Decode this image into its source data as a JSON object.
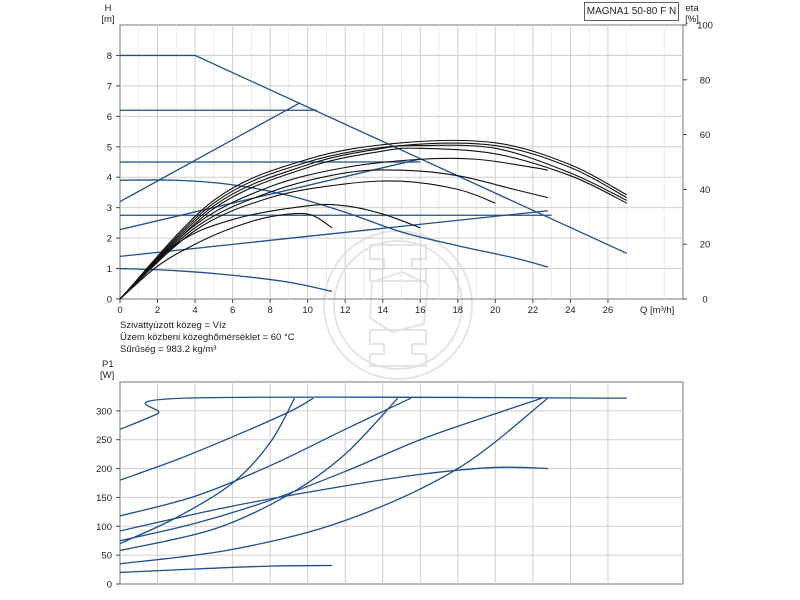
{
  "model": "MAGNA1 50-80 F N",
  "medium": {
    "line1": "Szivattyúzott közeg = Víz",
    "line2": "Üzem közbeni közeghőmérséklet = 60 °C",
    "line3": "Sűrűség = 983.2 kg/m³"
  },
  "chart_data": [
    {
      "type": "line",
      "panel": "head-efficiency",
      "ylabel_top": "H",
      "ylabel_unit": "[m]",
      "y2label_top": "eta",
      "y2label_unit": "[%]",
      "xlabel": "Q [m³/h]",
      "xlim": [
        0,
        30
      ],
      "ylim": [
        0,
        9
      ],
      "y2lim": [
        0,
        100
      ],
      "x_ticks": [
        0,
        2,
        4,
        6,
        8,
        10,
        12,
        14,
        16,
        18,
        20,
        22,
        24,
        26
      ],
      "y_ticks": [
        0,
        1,
        2,
        3,
        4,
        5,
        6,
        7,
        8
      ],
      "y2_ticks": [
        0,
        20,
        40,
        60,
        80,
        100
      ],
      "grid": true,
      "head_curves": [
        {
          "points": [
            [
              0,
              8
            ],
            [
              4,
              8
            ],
            [
              27,
              1.5
            ]
          ]
        },
        {
          "points": [
            [
              0,
              6.2
            ],
            [
              10.5,
              6.2
            ]
          ]
        },
        {
          "points": [
            [
              0,
              4.5
            ],
            [
              16,
              4.5
            ]
          ]
        },
        {
          "points": [
            [
              0,
              2.75
            ],
            [
              23,
              2.75
            ]
          ]
        },
        {
          "points": [
            [
              0,
              3.2
            ],
            [
              9.6,
              6.45
            ]
          ]
        },
        {
          "points": [
            [
              0,
              2.28
            ],
            [
              16,
              4.6
            ]
          ]
        },
        {
          "points": [
            [
              0,
              1.4
            ],
            [
              22.8,
              2.9
            ]
          ]
        },
        {
          "points": [
            [
              0,
              3.9
            ],
            [
              3,
              3.9
            ],
            [
              6,
              3.75
            ],
            [
              9,
              3.4
            ],
            [
              12,
              2.85
            ],
            [
              15,
              2.2
            ],
            [
              18,
              1.75
            ],
            [
              21,
              1.35
            ],
            [
              22.8,
              1.05
            ]
          ]
        },
        {
          "points": [
            [
              0,
              1.0
            ],
            [
              3,
              0.93
            ],
            [
              6,
              0.78
            ],
            [
              9,
              0.55
            ],
            [
              11.3,
              0.25
            ]
          ]
        }
      ],
      "efficiency_curves": [
        {
          "points": [
            [
              0,
              0
            ],
            [
              2,
              12
            ],
            [
              4,
              20
            ],
            [
              6,
              26
            ],
            [
              8,
              30
            ],
            [
              10,
              31
            ],
            [
              11.3,
              26
            ]
          ]
        },
        {
          "points": [
            [
              0,
              0
            ],
            [
              3,
              20
            ],
            [
              6,
              29
            ],
            [
              10,
              34
            ],
            [
              12,
              34
            ],
            [
              14,
              31
            ],
            [
              16,
              26
            ]
          ]
        },
        {
          "points": [
            [
              0,
              0
            ],
            [
              4,
              25
            ],
            [
              8,
              37
            ],
            [
              12,
              42
            ],
            [
              15,
              43
            ],
            [
              18,
              40
            ],
            [
              20,
              35
            ]
          ]
        },
        {
          "points": [
            [
              0,
              0
            ],
            [
              4,
              26
            ],
            [
              8,
              39
            ],
            [
              12,
              46
            ],
            [
              15,
              47
            ],
            [
              18,
              45
            ],
            [
              21,
              40
            ],
            [
              22.8,
              37
            ]
          ]
        },
        {
          "points": [
            [
              0,
              0
            ],
            [
              4,
              27
            ],
            [
              8,
              41
            ],
            [
              12,
              48
            ],
            [
              16,
              51
            ],
            [
              19,
              51
            ],
            [
              22,
              48
            ],
            [
              22.8,
              47
            ]
          ]
        },
        {
          "points": [
            [
              0,
              0
            ],
            [
              5,
              33
            ],
            [
              10,
              48
            ],
            [
              14,
              54
            ],
            [
              16,
              55
            ],
            [
              20,
              53
            ],
            [
              24,
              45
            ],
            [
              27,
              35
            ]
          ]
        },
        {
          "points": [
            [
              0,
              0
            ],
            [
              5,
              34
            ],
            [
              10,
              49
            ],
            [
              14,
              55
            ],
            [
              16,
              56
            ],
            [
              20,
              55
            ],
            [
              24,
              46
            ],
            [
              27,
              36
            ]
          ]
        },
        {
          "points": [
            [
              0,
              0
            ],
            [
              5,
              35
            ],
            [
              10,
              50
            ],
            [
              15,
              56
            ],
            [
              20,
              56
            ],
            [
              24,
              48
            ],
            [
              27,
              37
            ]
          ]
        },
        {
          "points": [
            [
              0,
              0
            ],
            [
              5,
              36
            ],
            [
              10,
              51
            ],
            [
              15,
              57
            ],
            [
              20,
              57
            ],
            [
              24,
              49
            ],
            [
              27,
              38
            ]
          ]
        }
      ]
    },
    {
      "type": "line",
      "panel": "power",
      "ylabel_top": "P1",
      "ylabel_unit": "[W]",
      "xlim": [
        0,
        30
      ],
      "ylim": [
        0,
        350
      ],
      "y_ticks": [
        0,
        50,
        100,
        150,
        200,
        250,
        300
      ],
      "grid": true,
      "power_curves": [
        {
          "points": [
            [
              0,
              268
            ],
            [
              2,
              295
            ],
            [
              3.5,
              322
            ],
            [
              27,
              322
            ]
          ]
        },
        {
          "points": [
            [
              0,
              180
            ],
            [
              3,
              215
            ],
            [
              6,
              255
            ],
            [
              9,
              298
            ],
            [
              10.3,
              322
            ]
          ]
        },
        {
          "points": [
            [
              0,
              118
            ],
            [
              4,
              152
            ],
            [
              8,
              205
            ],
            [
              12,
              268
            ],
            [
              15.5,
              322
            ]
          ]
        },
        {
          "points": [
            [
              0,
              75
            ],
            [
              4,
              105
            ],
            [
              8,
              145
            ],
            [
              12,
              195
            ],
            [
              16,
              250
            ],
            [
              20,
              295
            ],
            [
              22.5,
              322
            ]
          ]
        },
        {
          "points": [
            [
              0,
              70
            ],
            [
              3,
              115
            ],
            [
              6,
              175
            ],
            [
              8,
              245
            ],
            [
              9.3,
              322
            ]
          ]
        },
        {
          "points": [
            [
              0,
              58
            ],
            [
              5,
              95
            ],
            [
              9,
              155
            ],
            [
              12,
              225
            ],
            [
              14.8,
              322
            ]
          ]
        },
        {
          "points": [
            [
              0,
              92
            ],
            [
              6,
              135
            ],
            [
              12,
              170
            ],
            [
              16,
              190
            ],
            [
              20,
              202
            ],
            [
              22.8,
              200
            ]
          ]
        },
        {
          "points": [
            [
              0,
              35
            ],
            [
              6,
              60
            ],
            [
              12,
              110
            ],
            [
              18,
              200
            ],
            [
              22.8,
              322
            ]
          ]
        },
        {
          "points": [
            [
              0,
              20
            ],
            [
              4,
              26
            ],
            [
              8,
              31
            ],
            [
              11.3,
              32
            ]
          ]
        }
      ]
    }
  ]
}
